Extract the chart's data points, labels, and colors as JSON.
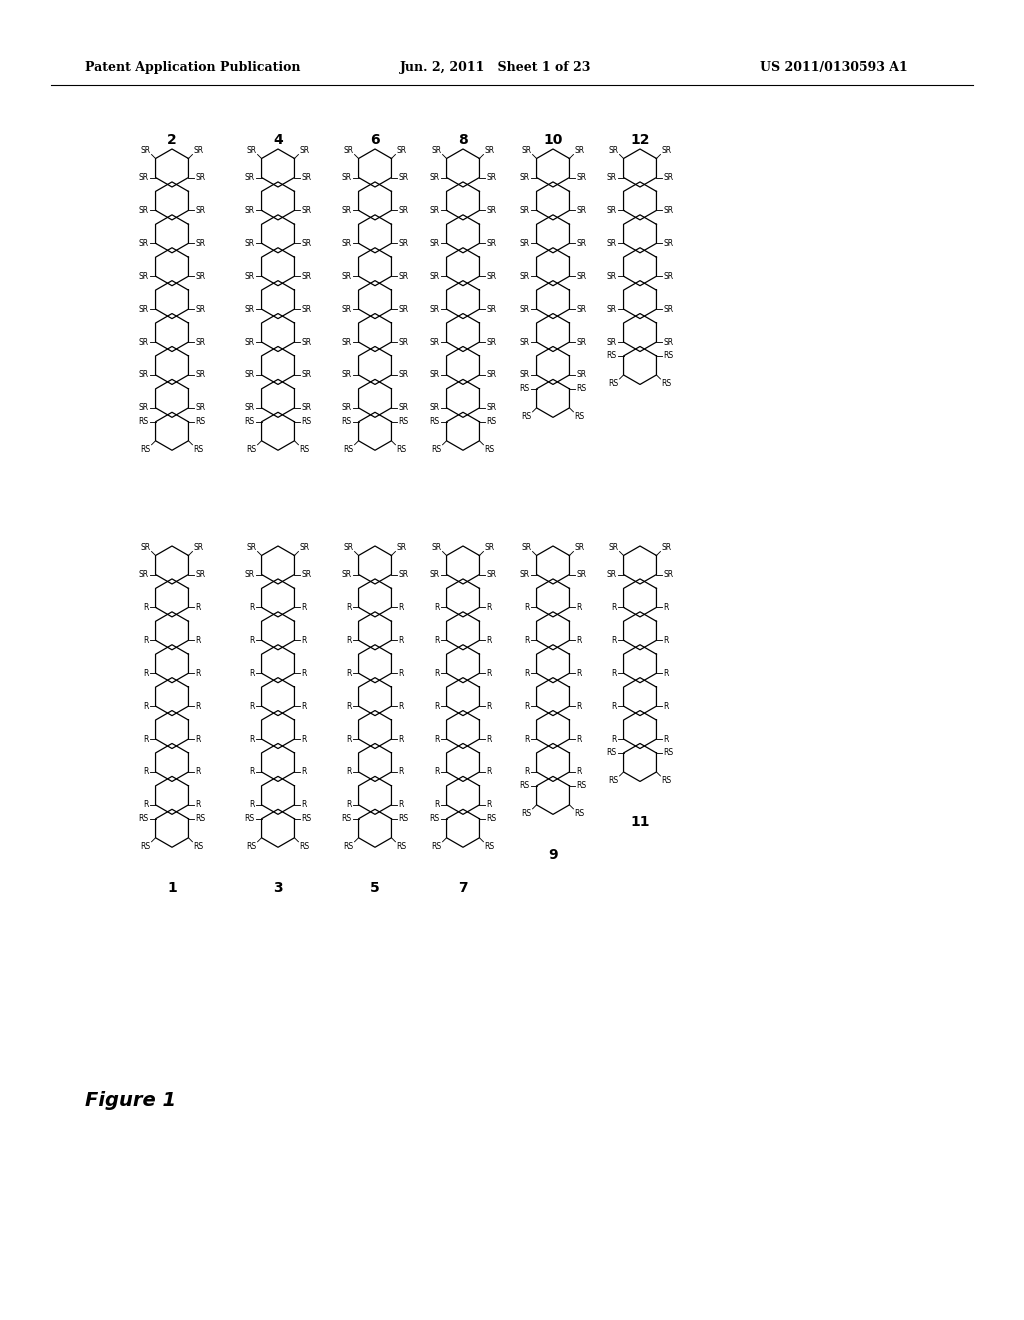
{
  "title_left": "Patent Application Publication",
  "title_mid": "Jun. 2, 2011   Sheet 1 of 23",
  "title_right": "US 2011/0130593 A1",
  "figure_label": "Figure 1",
  "background_color": "#ffffff",
  "structures": {
    "top_row_labels": [
      "2",
      "4",
      "6",
      "8",
      "10",
      "12"
    ],
    "bottom_row_labels": [
      "1",
      "3",
      "5",
      "7",
      "9",
      "11"
    ]
  }
}
